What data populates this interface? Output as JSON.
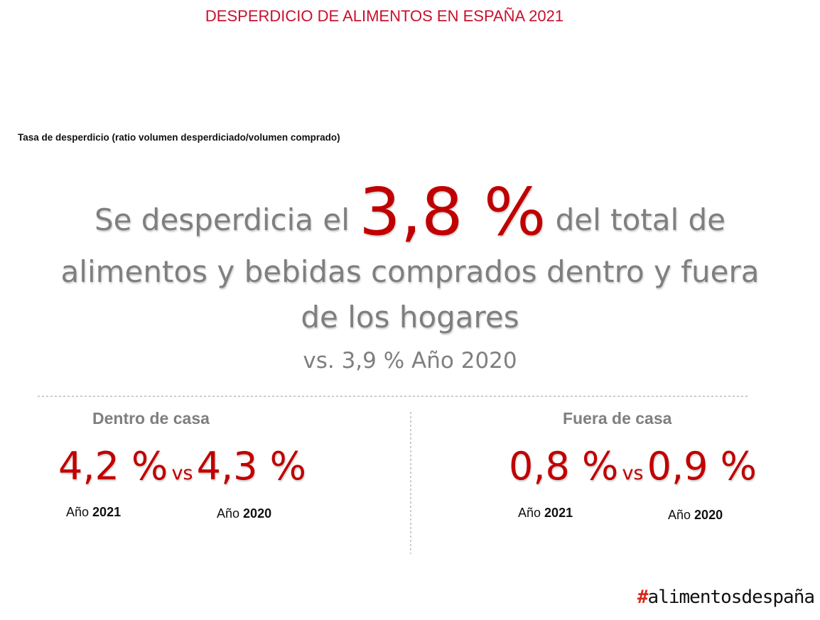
{
  "header": {
    "title": "DESPERDICIO DE ALIMENTOS EN ESPAÑA 2021",
    "subtitle": "Tasa de desperdicio (ratio volumen desperdiciado/volumen comprado)"
  },
  "headline": {
    "before": "Se desperdicia el",
    "figure": "3,8 %",
    "after_line1": "del total de",
    "line2": "alimentos y bebidas comprados dentro y fuera",
    "line3": "de los hogares",
    "comparison": "vs. 3,9 % Año 2020"
  },
  "blocks": [
    {
      "title": "Dentro de casa",
      "current": "4,2 %",
      "vs": "vs",
      "previous": "4,3 %",
      "current_label": "Año",
      "current_year": "2021",
      "previous_label": "Año",
      "previous_year": "2020"
    },
    {
      "title": "Fuera de casa",
      "current": "0,8 %",
      "vs": "vs",
      "previous": "0,9 %",
      "current_label": "Año",
      "current_year": "2021",
      "previous_label": "Año",
      "previous_year": "2020"
    }
  ],
  "logo": {
    "hash": "#",
    "text": "alimentosdespaña"
  }
}
